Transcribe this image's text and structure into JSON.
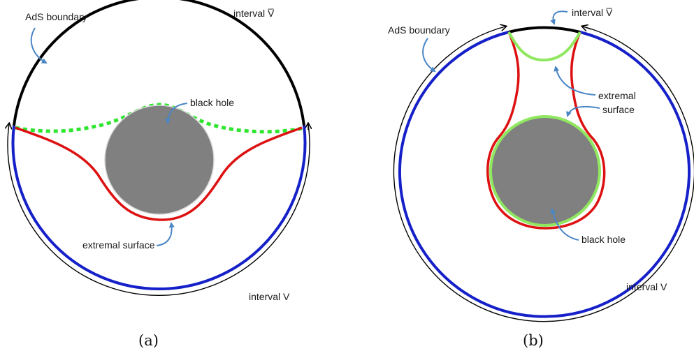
{
  "panel_a": {
    "caption": "(a)",
    "labels": {
      "ads_boundary": "AdS boundary",
      "interval_vbar": "interval V̅",
      "black_hole": "black hole",
      "extremal_surface": "extremal surface",
      "interval_v": "interval V"
    }
  },
  "panel_b": {
    "caption": "(b)",
    "labels": {
      "ads_boundary": "AdS boundary",
      "interval_vbar": "interval V̅",
      "extremal_surface_line1": "extremal",
      "extremal_surface_line2": "surface",
      "black_hole": "black hole",
      "interval_v": "interval V"
    }
  },
  "colors": {
    "black_hole": "#808080",
    "boundary_interval_v": "#1520c8",
    "boundary_interval_vbar": "#000000",
    "extremal_surface_red": "#dd1111",
    "extremal_surface_green": "#2ee62e",
    "extremal_surface_green_b": "#90e860",
    "pointer_arrows": "#4a86c5"
  }
}
